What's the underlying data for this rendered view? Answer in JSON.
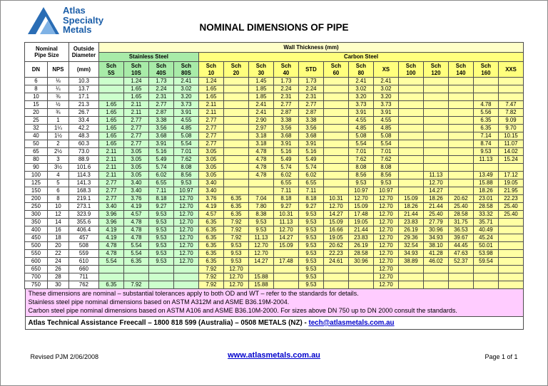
{
  "page": {
    "logo": {
      "line1": "Atlas",
      "line2": "Specialty",
      "line3": "Metals"
    },
    "title": "NOMINAL DIMENSIONS OF PIPE"
  },
  "table": {
    "headers": {
      "nominal": "Nominal\nPipe Size",
      "outside": "Outside\nDiameter",
      "od_unit": "(mm)",
      "wall": "Wall Thickness (mm)",
      "stainless": "Stainless Steel",
      "carbon": "Carbon Steel",
      "dn": "DN",
      "nps": "NPS",
      "sch": [
        "Sch\n5S",
        "Sch\n10S",
        "Sch\n40S",
        "Sch\n80S",
        "Sch\n10",
        "Sch\n20",
        "Sch\n30",
        "Sch\n40",
        "STD",
        "Sch\n60",
        "Sch\n80",
        "XS",
        "Sch\n100",
        "Sch\n120",
        "Sch\n140",
        "Sch\n160",
        "XXS"
      ]
    },
    "rows": [
      [
        "6",
        "⅛",
        "10.3",
        "",
        "1.24",
        "1.73",
        "2.41",
        "1.24",
        "",
        "1.45",
        "1.73",
        "1.73",
        "",
        "2.41",
        "2.41",
        "",
        "",
        "",
        "",
        ""
      ],
      [
        "8",
        "¼",
        "13.7",
        "",
        "1.65",
        "2.24",
        "3.02",
        "1.65",
        "",
        "1.85",
        "2.24",
        "2.24",
        "",
        "3.02",
        "3.02",
        "",
        "",
        "",
        "",
        ""
      ],
      [
        "10",
        "⅜",
        "17.1",
        "",
        "1.65",
        "2.31",
        "3.20",
        "1.65",
        "",
        "1.85",
        "2.31",
        "2.31",
        "",
        "3.20",
        "3.20",
        "",
        "",
        "",
        "",
        ""
      ],
      [
        "15",
        "½",
        "21.3",
        "1.65",
        "2.11",
        "2.77",
        "3.73",
        "2.11",
        "",
        "2.41",
        "2.77",
        "2.77",
        "",
        "3.73",
        "3.73",
        "",
        "",
        "",
        "4.78",
        "7.47"
      ],
      [
        "20",
        "¾",
        "26.7",
        "1.65",
        "2.11",
        "2.87",
        "3.91",
        "2.11",
        "",
        "2.41",
        "2.87",
        "2.87",
        "",
        "3.91",
        "3.91",
        "",
        "",
        "",
        "5.56",
        "7.82"
      ],
      [
        "25",
        "1",
        "33.4",
        "1.65",
        "2.77",
        "3.38",
        "4.55",
        "2.77",
        "",
        "2.90",
        "3.38",
        "3.38",
        "",
        "4.55",
        "4.55",
        "",
        "",
        "",
        "6.35",
        "9.09"
      ],
      [
        "32",
        "1¼",
        "42.2",
        "1.65",
        "2.77",
        "3.56",
        "4.85",
        "2.77",
        "",
        "2.97",
        "3.56",
        "3.56",
        "",
        "4.85",
        "4.85",
        "",
        "",
        "",
        "6.35",
        "9.70"
      ],
      [
        "40",
        "1½",
        "48.3",
        "1.65",
        "2.77",
        "3.68",
        "5.08",
        "2.77",
        "",
        "3.18",
        "3.68",
        "3.68",
        "",
        "5.08",
        "5.08",
        "",
        "",
        "",
        "7.14",
        "10.15"
      ],
      [
        "50",
        "2",
        "60.3",
        "1.65",
        "2.77",
        "3.91",
        "5.54",
        "2.77",
        "",
        "3.18",
        "3.91",
        "3.91",
        "",
        "5.54",
        "5.54",
        "",
        "",
        "",
        "8.74",
        "11.07"
      ],
      [
        "65",
        "2½",
        "73.0",
        "2.11",
        "3.05",
        "5.16",
        "7.01",
        "3.05",
        "",
        "4.78",
        "5.16",
        "5.16",
        "",
        "7.01",
        "7.01",
        "",
        "",
        "",
        "9.53",
        "14.02"
      ],
      [
        "80",
        "3",
        "88.9",
        "2.11",
        "3.05",
        "5.49",
        "7.62",
        "3.05",
        "",
        "4.78",
        "5.49",
        "5.49",
        "",
        "7.62",
        "7.62",
        "",
        "",
        "",
        "11.13",
        "15.24"
      ],
      [
        "90",
        "3½",
        "101.6",
        "2.11",
        "3.05",
        "5.74",
        "8.08",
        "3.05",
        "",
        "4.78",
        "5.74",
        "5.74",
        "",
        "8.08",
        "8.08",
        "",
        "",
        "",
        "",
        ""
      ],
      [
        "100",
        "4",
        "114.3",
        "2.11",
        "3.05",
        "6.02",
        "8.56",
        "3.05",
        "",
        "4.78",
        "6.02",
        "6.02",
        "",
        "8.56",
        "8.56",
        "",
        "11.13",
        "",
        "13.49",
        "17.12"
      ],
      [
        "125",
        "5",
        "141.3",
        "2.77",
        "3.40",
        "6.55",
        "9.53",
        "3.40",
        "",
        "",
        "6.55",
        "6.55",
        "",
        "9.53",
        "9.53",
        "",
        "12.70",
        "",
        "15.88",
        "19.05"
      ],
      [
        "150",
        "6",
        "168.3",
        "2.77",
        "3.40",
        "7.11",
        "10.97",
        "3.40",
        "",
        "",
        "7.11",
        "7.11",
        "",
        "10.97",
        "10.97",
        "",
        "14.27",
        "",
        "18.26",
        "21.95"
      ],
      [
        "200",
        "8",
        "219.1",
        "2.77",
        "3.76",
        "8.18",
        "12.70",
        "3.76",
        "6.35",
        "7.04",
        "8.18",
        "8.18",
        "10.31",
        "12.70",
        "12.70",
        "15.09",
        "18.26",
        "20.62",
        "23.01",
        "22.23"
      ],
      [
        "250",
        "10",
        "273.1",
        "3.40",
        "4.19",
        "9.27",
        "12.70",
        "4.19",
        "6.35",
        "7.80",
        "9.27",
        "9.27",
        "12.70",
        "15.09",
        "12.70",
        "18.26",
        "21.44",
        "25.40",
        "28.58",
        "25.40"
      ],
      [
        "300",
        "12",
        "323.9",
        "3.96",
        "4.57",
        "9.53",
        "12.70",
        "4.57",
        "6.35",
        "8.38",
        "10.31",
        "9.53",
        "14.27",
        "17.48",
        "12.70",
        "21.44",
        "25.40",
        "28.58",
        "33.32",
        "25.40"
      ],
      [
        "350",
        "14",
        "355.6",
        "3.96",
        "4.78",
        "9.53",
        "12.70",
        "6.35",
        "7.92",
        "9.53",
        "11.13",
        "9.53",
        "15.09",
        "19.05",
        "12.70",
        "23.83",
        "27.79",
        "31.75",
        "35.71",
        ""
      ],
      [
        "400",
        "16",
        "406.4",
        "4.19",
        "4.78",
        "9.53",
        "12.70",
        "6.35",
        "7.92",
        "9.53",
        "12.70",
        "9.53",
        "16.66",
        "21.44",
        "12.70",
        "26.19",
        "30.96",
        "36.53",
        "40.49",
        ""
      ],
      [
        "450",
        "18",
        "457",
        "4.19",
        "4.78",
        "9.53",
        "12.70",
        "6.35",
        "7.92",
        "11.13",
        "14.27",
        "9.53",
        "19.05",
        "23.83",
        "12.70",
        "29.36",
        "34.93",
        "39.67",
        "45.24",
        ""
      ],
      [
        "500",
        "20",
        "508",
        "4.78",
        "5.54",
        "9.53",
        "12.70",
        "6.35",
        "9.53",
        "12.70",
        "15.09",
        "9.53",
        "20.62",
        "26.19",
        "12.70",
        "32.54",
        "38.10",
        "44.45",
        "50.01",
        ""
      ],
      [
        "550",
        "22",
        "559",
        "4.78",
        "5.54",
        "9.53",
        "12.70",
        "6.35",
        "9.53",
        "12.70",
        "",
        "9.53",
        "22.23",
        "28.58",
        "12.70",
        "34.93",
        "41.28",
        "47.63",
        "53.98",
        ""
      ],
      [
        "600",
        "24",
        "610",
        "5.54",
        "6.35",
        "9.53",
        "12.70",
        "6.35",
        "9.53",
        "14.27",
        "17.48",
        "9.53",
        "24.61",
        "30.96",
        "12.70",
        "38.89",
        "46.02",
        "52.37",
        "59.54",
        ""
      ],
      [
        "650",
        "26",
        "660",
        "",
        "",
        "",
        "",
        "7.92",
        "12.70",
        "",
        "",
        "9.53",
        "",
        "",
        "12.70",
        "",
        "",
        "",
        "",
        ""
      ],
      [
        "700",
        "28",
        "711",
        "",
        "",
        "",
        "",
        "7.92",
        "12.70",
        "15.88",
        "",
        "9.53",
        "",
        "",
        "12.70",
        "",
        "",
        "",
        "",
        ""
      ],
      [
        "750",
        "30",
        "762",
        "6.35",
        "7.92",
        "",
        "",
        "7.92",
        "12.70",
        "15.88",
        "",
        "9.53",
        "",
        "",
        "12.70",
        "",
        "",
        "",
        "",
        ""
      ]
    ]
  },
  "notes": [
    "These dimensions are nominal – substantial tolerances apply to both OD and WT – refer to the standards for details.",
    "Stainless steel pipe nominal dimensions based on ASTM A312M and ASME B36.19M-2004.",
    "Carbon steel pipe nominal dimensions based on ASTM A106 and ASME B36.10M-2000. For sizes above DN 750 up to DN 2000 consult the standards."
  ],
  "assistance": {
    "text": "Atlas Technical Assistance Freecall – 1800 818 599 (Australia) – 0508 METALS (NZ) - ",
    "link": "tech@atlasmetals.com.au"
  },
  "bottom": {
    "left": "Revised PJM 2/06/2008",
    "center": "www.atlasmetals.com.au",
    "right": "Page 1 of 1"
  },
  "colors": {
    "stainless_header_bg": "#a8eba8",
    "stainless_cell_bg": "#ccffcc",
    "carbon_header_bg": "#ffff7d",
    "carbon_cell_bg": "#ffffa3",
    "wall_header_bg": "#ffffc8",
    "notes_bg": "#ffccff",
    "link_blue": "#0000cc",
    "logo_blue": "#1b5ea8"
  }
}
